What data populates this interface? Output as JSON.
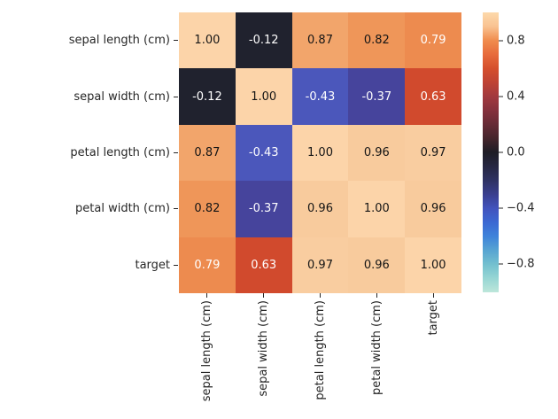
{
  "figure": {
    "background": "#ffffff",
    "label_color": "#262626"
  },
  "chart_data": {
    "type": "heatmap",
    "title": "",
    "xlabel": "",
    "ylabel": "",
    "categories": [
      "sepal length (cm)",
      "sepal width (cm)",
      "petal length (cm)",
      "petal width (cm)",
      "target"
    ],
    "values": [
      [
        1.0,
        -0.12,
        0.87,
        0.82,
        0.79
      ],
      [
        -0.12,
        1.0,
        -0.43,
        -0.37,
        0.63
      ],
      [
        0.87,
        -0.43,
        1.0,
        0.96,
        0.97
      ],
      [
        0.82,
        -0.37,
        0.96,
        1.0,
        0.96
      ],
      [
        0.79,
        0.63,
        0.97,
        0.96,
        1.0
      ]
    ],
    "cells": [
      [
        "1.00",
        "-0.12",
        "0.87",
        "0.82",
        "0.79"
      ],
      [
        "-0.12",
        "1.00",
        "-0.43",
        "-0.37",
        "0.63"
      ],
      [
        "0.87",
        "-0.43",
        "1.00",
        "0.96",
        "0.97"
      ],
      [
        "0.82",
        "-0.37",
        "0.96",
        "1.00",
        "0.96"
      ],
      [
        "0.79",
        "0.63",
        "0.97",
        "0.96",
        "1.00"
      ]
    ],
    "cell_colors": {
      "1.00": "#fcd4a9",
      "0.97": "#f9cda0",
      "0.96": "#f8cb9d",
      "0.87": "#f2a56b",
      "0.82": "#ef9659",
      "0.79": "#ed8b4f",
      "0.63": "#d14a2d",
      "-0.12": "#20222e",
      "-0.37": "#46449c",
      "-0.43": "#4b57bb"
    },
    "cell_text_colors": {
      "1.00": "#151515",
      "0.97": "#151515",
      "0.96": "#151515",
      "0.87": "#151515",
      "0.82": "#151515",
      "0.79": "#ffffff",
      "0.63": "#ffffff",
      "-0.12": "#ffffff",
      "-0.37": "#ffffff",
      "-0.43": "#ffffff"
    },
    "colorbar": {
      "vmin": -1,
      "vmax": 1,
      "tick_labels": [
        "0.8",
        "0.4",
        "0.0",
        "−0.4",
        "−0.8"
      ],
      "tick_positions_pct": [
        10,
        30,
        50,
        70,
        90
      ],
      "colormap_name": "icefire",
      "gradient_stops": [
        {
          "pos": 0,
          "color": "#fdd9ab"
        },
        {
          "pos": 5,
          "color": "#f9c392"
        },
        {
          "pos": 10,
          "color": "#f08c4e"
        },
        {
          "pos": 15,
          "color": "#e76b3c"
        },
        {
          "pos": 20,
          "color": "#d54f2d"
        },
        {
          "pos": 25,
          "color": "#bf4334"
        },
        {
          "pos": 30,
          "color": "#a2393e"
        },
        {
          "pos": 35,
          "color": "#85313d"
        },
        {
          "pos": 40,
          "color": "#662b36"
        },
        {
          "pos": 45,
          "color": "#45252c"
        },
        {
          "pos": 50,
          "color": "#1e1d26"
        },
        {
          "pos": 55,
          "color": "#262742"
        },
        {
          "pos": 60,
          "color": "#2f3263"
        },
        {
          "pos": 65,
          "color": "#3a3f8f"
        },
        {
          "pos": 70,
          "color": "#4253bd"
        },
        {
          "pos": 75,
          "color": "#3c68d2"
        },
        {
          "pos": 80,
          "color": "#3f83da"
        },
        {
          "pos": 85,
          "color": "#57a4d2"
        },
        {
          "pos": 90,
          "color": "#73c0cf"
        },
        {
          "pos": 95,
          "color": "#97d6d4"
        },
        {
          "pos": 100,
          "color": "#bde6da"
        }
      ]
    },
    "layout": {
      "grid": false,
      "legend": false,
      "colorbar_position": "right",
      "x_tick_rotation_deg": 90
    }
  }
}
